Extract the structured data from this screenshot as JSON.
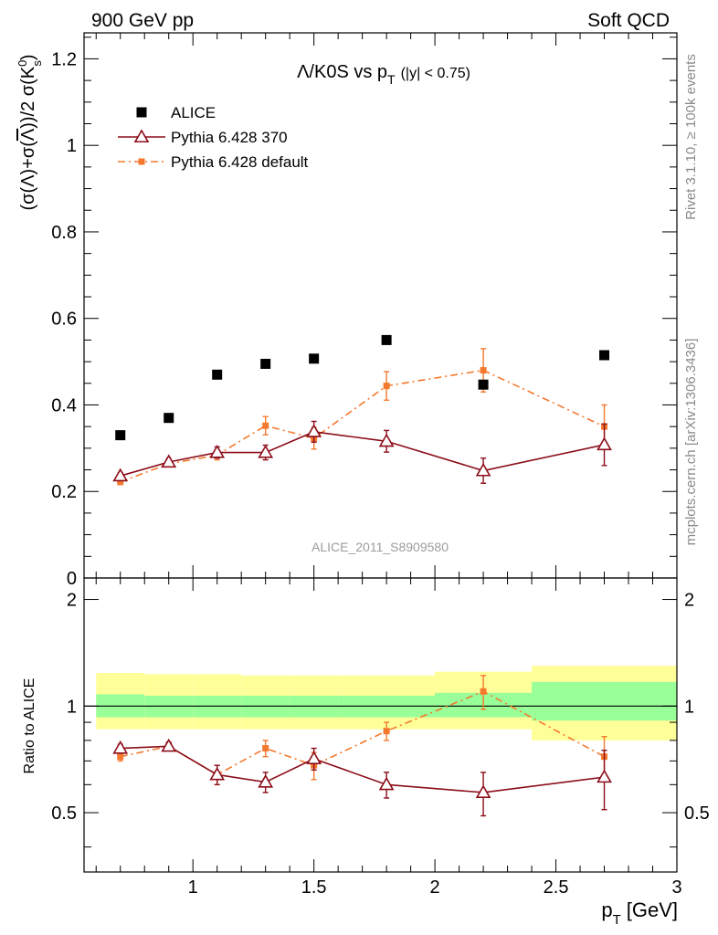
{
  "header": {
    "left": "900 GeV pp",
    "right": "Soft QCD"
  },
  "side_labels": {
    "rivet": "Rivet 3.1.10, ≥ 100k events",
    "mcplots": "mcplots.cern.ch [arXiv:1306.3436]"
  },
  "analysis_id": "ALICE_2011_S8909580",
  "colors": {
    "alice": "#000000",
    "pythia370": "#8b0d1a",
    "pythia_default": "#f4792e",
    "band_inner": "#99ff99",
    "band_outer": "#ffff99"
  },
  "chart_data": [
    {
      "type": "scatter",
      "panel": "main",
      "title": "Λ/K0S vs p_T (|y| < 0.75)",
      "title_parts": {
        "main": "Λ/K0S vs p",
        "sub": "T",
        "cut": "(|y| < 0.75)"
      },
      "ylabel": "(σ(Λ)+σ(Λ̅))/2 σ(K⁰s)",
      "ylabel_parts": {
        "a": "(σ(Λ)+σ(",
        "bar": "Λ",
        "b": "))/2 σ(K",
        "sup": "0",
        "sub": "s",
        "c": ")"
      },
      "xlim": [
        0.55,
        3.0
      ],
      "ylim": [
        0,
        1.26
      ],
      "yticks": [
        0,
        0.2,
        0.4,
        0.6,
        0.8,
        1,
        1.2
      ],
      "ytick_labels": [
        "0",
        "0.2",
        "0.4",
        "0.6",
        "0.8",
        "1",
        "1.2"
      ],
      "legend": {
        "position": "top-left",
        "entries": [
          "ALICE",
          "Pythia 6.428 370",
          "Pythia 6.428 default"
        ]
      },
      "series": [
        {
          "name": "ALICE",
          "style": "square-marker",
          "x": [
            0.7,
            0.9,
            1.1,
            1.3,
            1.5,
            1.8,
            2.2,
            2.7
          ],
          "y": [
            0.33,
            0.37,
            0.47,
            0.495,
            0.507,
            0.55,
            0.447,
            0.515
          ],
          "yerr": [
            0,
            0,
            0,
            0,
            0,
            0,
            0,
            0
          ]
        },
        {
          "name": "Pythia 6.428 370",
          "style": "triangle-solid-line",
          "x": [
            0.7,
            0.9,
            1.1,
            1.3,
            1.5,
            1.8,
            2.2,
            2.7
          ],
          "y": [
            0.236,
            0.268,
            0.29,
            0.29,
            0.338,
            0.316,
            0.248,
            0.308
          ],
          "yerr": [
            0.007,
            0.008,
            0.013,
            0.017,
            0.024,
            0.025,
            0.029,
            0.048
          ]
        },
        {
          "name": "Pythia 6.428 default",
          "style": "square-dashdot-line",
          "x": [
            0.7,
            0.9,
            1.1,
            1.3,
            1.5,
            1.8,
            2.2,
            2.7
          ],
          "y": [
            0.222,
            0.264,
            0.284,
            0.352,
            0.323,
            0.444,
            0.48,
            0.35
          ],
          "yerr": [
            0.006,
            0.007,
            0.011,
            0.021,
            0.025,
            0.033,
            0.05,
            0.05
          ]
        }
      ]
    },
    {
      "type": "scatter",
      "panel": "ratio",
      "ylabel": "Ratio to ALICE",
      "xlabel": "p_T [GeV]",
      "xlabel_parts": {
        "main": "p",
        "sub": "T",
        "unit": "[GeV]"
      },
      "xlim": [
        0.55,
        3.0
      ],
      "ylim": [
        0.34,
        2.3
      ],
      "xticks": [
        1,
        1.5,
        2,
        2.5,
        3
      ],
      "xtick_labels": [
        "1",
        "1.5",
        "2",
        "2.5",
        "3"
      ],
      "yticks": [
        0.5,
        1,
        2
      ],
      "ytick_labels": [
        "0.5",
        "1",
        "2"
      ],
      "reference_line": 1,
      "bands": [
        {
          "x0": 0.6,
          "x1": 0.8,
          "inner": [
            0.93,
            1.08
          ],
          "outer": [
            0.86,
            1.24
          ]
        },
        {
          "x0": 0.8,
          "x1": 1.0,
          "inner": [
            0.93,
            1.07
          ],
          "outer": [
            0.86,
            1.23
          ]
        },
        {
          "x0": 1.0,
          "x1": 1.2,
          "inner": [
            0.93,
            1.07
          ],
          "outer": [
            0.86,
            1.23
          ]
        },
        {
          "x0": 1.2,
          "x1": 1.4,
          "inner": [
            0.93,
            1.07
          ],
          "outer": [
            0.86,
            1.22
          ]
        },
        {
          "x0": 1.4,
          "x1": 1.6,
          "inner": [
            0.93,
            1.07
          ],
          "outer": [
            0.86,
            1.22
          ]
        },
        {
          "x0": 1.6,
          "x1": 2.0,
          "inner": [
            0.93,
            1.07
          ],
          "outer": [
            0.86,
            1.22
          ]
        },
        {
          "x0": 2.0,
          "x1": 2.4,
          "inner": [
            0.93,
            1.09
          ],
          "outer": [
            0.86,
            1.25
          ]
        },
        {
          "x0": 2.4,
          "x1": 3.0,
          "inner": [
            0.91,
            1.17
          ],
          "outer": [
            0.8,
            1.3
          ]
        }
      ],
      "series": [
        {
          "name": "Pythia 6.428 370",
          "style": "triangle-solid-line",
          "x": [
            0.7,
            0.9,
            1.1,
            1.3,
            1.5,
            1.8,
            2.2,
            2.7
          ],
          "y": [
            0.76,
            0.77,
            0.64,
            0.61,
            0.71,
            0.6,
            0.57,
            0.63
          ],
          "yerr": [
            0.02,
            0.02,
            0.04,
            0.04,
            0.05,
            0.05,
            0.08,
            0.12
          ]
        },
        {
          "name": "Pythia 6.428 default",
          "style": "square-dashdot-line",
          "x": [
            0.7,
            0.9,
            1.1,
            1.3,
            1.5,
            1.8,
            2.2,
            2.7
          ],
          "y": [
            0.72,
            0.77,
            0.64,
            0.76,
            0.68,
            0.85,
            1.1,
            0.72
          ],
          "yerr": [
            0.02,
            0.02,
            0.04,
            0.04,
            0.06,
            0.05,
            0.12,
            0.1
          ]
        }
      ]
    }
  ]
}
